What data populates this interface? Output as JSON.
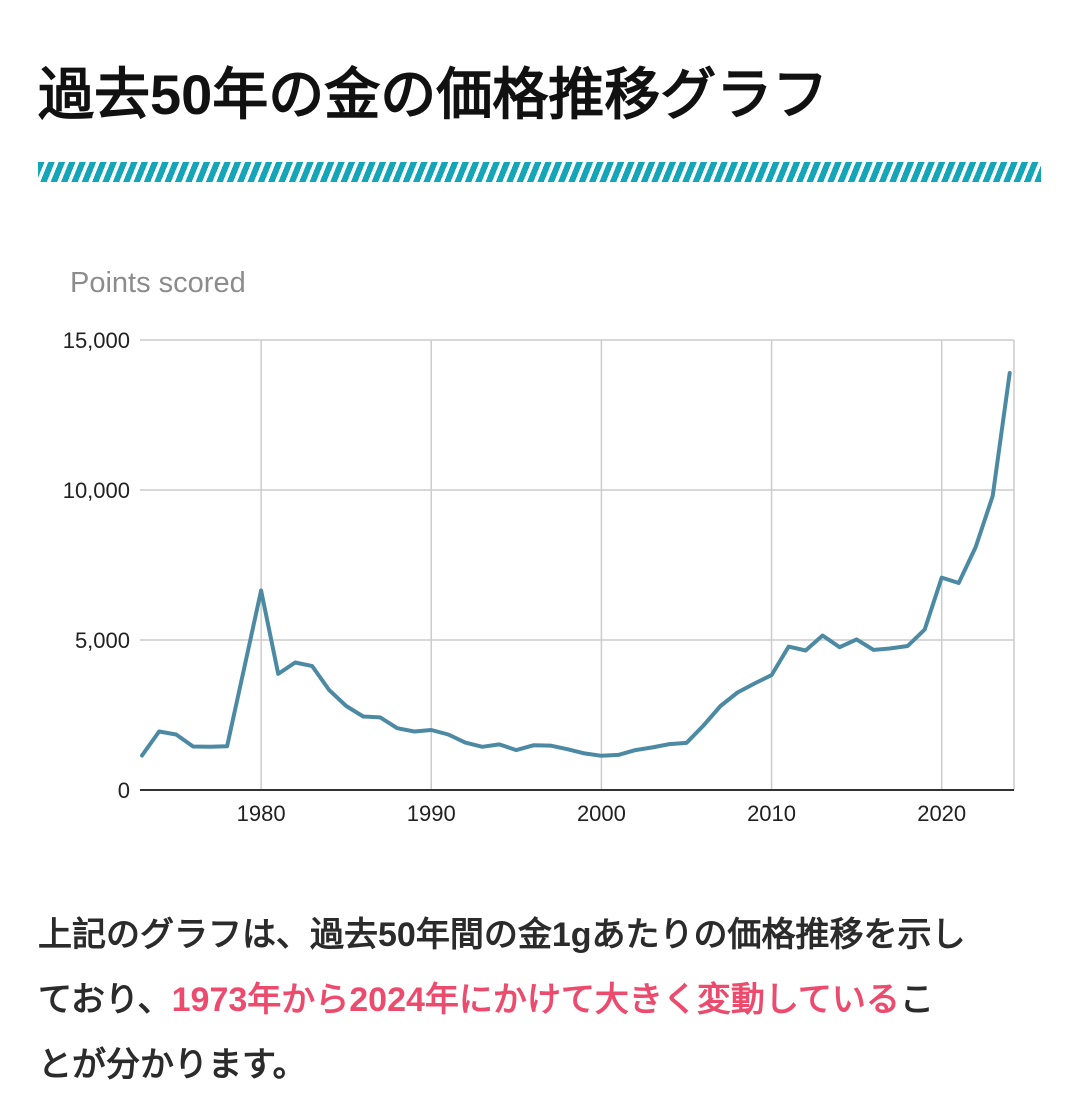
{
  "page": {
    "background": "#ffffff"
  },
  "header": {
    "title": "過去50年の金の価格推移グラフ",
    "divider_color": "#14a5b8"
  },
  "chart_data": {
    "type": "line",
    "title": "Points scored",
    "title_color": "#8c8c8c",
    "series_color": "#4c8aa4",
    "grid": true,
    "legend": "none",
    "xlabel": "",
    "ylabel": "",
    "xlim": [
      1972.88,
      2024.25
    ],
    "ylim": [
      0,
      15000
    ],
    "x_tick_values": [
      1980,
      1990,
      2000,
      2010,
      2020
    ],
    "x_tick_labels": [
      "1980",
      "1990",
      "2000",
      "2010",
      "2020"
    ],
    "y_tick_values": [
      0,
      5000,
      10000,
      15000
    ],
    "y_tick_labels": [
      "0",
      "5,000",
      "10,000",
      "15,000"
    ],
    "x": [
      1973,
      1974,
      1975,
      1976,
      1977,
      1978,
      1979,
      1980,
      1981,
      1982,
      1983,
      1984,
      1985,
      1986,
      1987,
      1988,
      1989,
      1990,
      1991,
      1992,
      1993,
      1994,
      1995,
      1996,
      1997,
      1998,
      1999,
      2000,
      2001,
      2002,
      2003,
      2004,
      2005,
      2006,
      2007,
      2008,
      2009,
      2010,
      2011,
      2012,
      2013,
      2014,
      2015,
      2016,
      2017,
      2018,
      2019,
      2020,
      2021,
      2022,
      2023,
      2024
    ],
    "values": [
      1150,
      1950,
      1850,
      1450,
      1440,
      1460,
      4050,
      6650,
      3870,
      4250,
      4130,
      3330,
      2800,
      2450,
      2420,
      2060,
      1950,
      2000,
      1850,
      1580,
      1440,
      1520,
      1330,
      1490,
      1480,
      1360,
      1220,
      1140,
      1170,
      1330,
      1420,
      1530,
      1570,
      2150,
      2800,
      3250,
      3550,
      3830,
      4780,
      4650,
      5150,
      4760,
      5020,
      4670,
      4720,
      4800,
      5350,
      7080,
      6900,
      8100,
      9800,
      13900
    ],
    "gridline_color": "#cccccc",
    "baseline_color": "#333333",
    "tick_label_color": "#212121"
  },
  "paragraph": {
    "line1": "上記のグラフは、過去50年間の金1gあたりの価格推移を示し",
    "line2_before": "ており、",
    "line2_highlight": "1973年から2024年にかけて大きく変動している",
    "line2_after": "こ",
    "line3": "とが分かります。",
    "highlight_color": "#ed4b6e",
    "text_color": "#2b2b2b"
  }
}
